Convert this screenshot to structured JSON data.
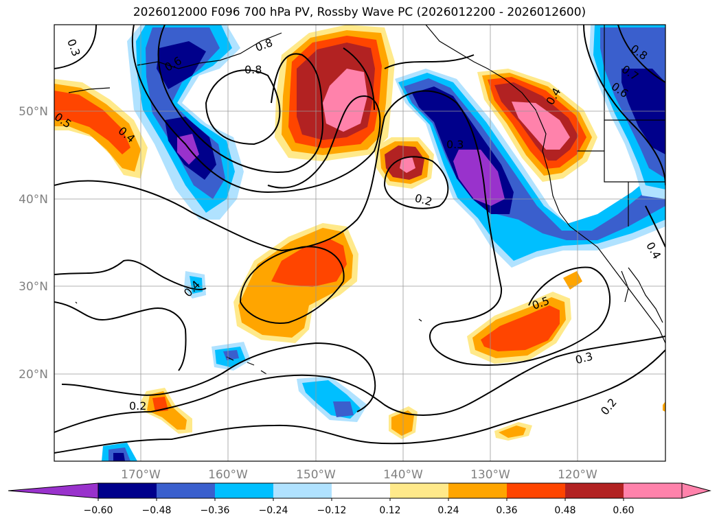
{
  "title": "2026012000 F096 700 hPa PV, Rossby Wave PC (2026012200 - 2026012600)",
  "lon_labels": [
    "170°W",
    "160°W",
    "150°W",
    "140°W",
    "130°W",
    "120°W"
  ],
  "lat_labels": [
    "50°N",
    "40°N",
    "30°N",
    "20°N"
  ],
  "colorbar": {
    "tick_labels": [
      "−0.60",
      "−0.48",
      "−0.36",
      "−0.24",
      "−0.12",
      "0.12",
      "0.24",
      "0.36",
      "0.48",
      "0.60"
    ],
    "colors": [
      "#9932cc",
      "#00008b",
      "#3a5fcd",
      "#00bfff",
      "#b0e2ff",
      "#ffffff",
      "#ffe98a",
      "#ffa500",
      "#ff4500",
      "#b22222",
      "#ff82ab",
      "#ff82ab"
    ]
  },
  "contour_labels": [
    "0.3",
    "0.8",
    "0.6",
    "0.5",
    "0.4",
    "0.8",
    "0.3",
    "0.2",
    "0.4",
    "0.8",
    "0.7",
    "0.6",
    "0.4",
    "0.4",
    "0.5",
    "0.3",
    "0.2",
    "0.2"
  ]
}
